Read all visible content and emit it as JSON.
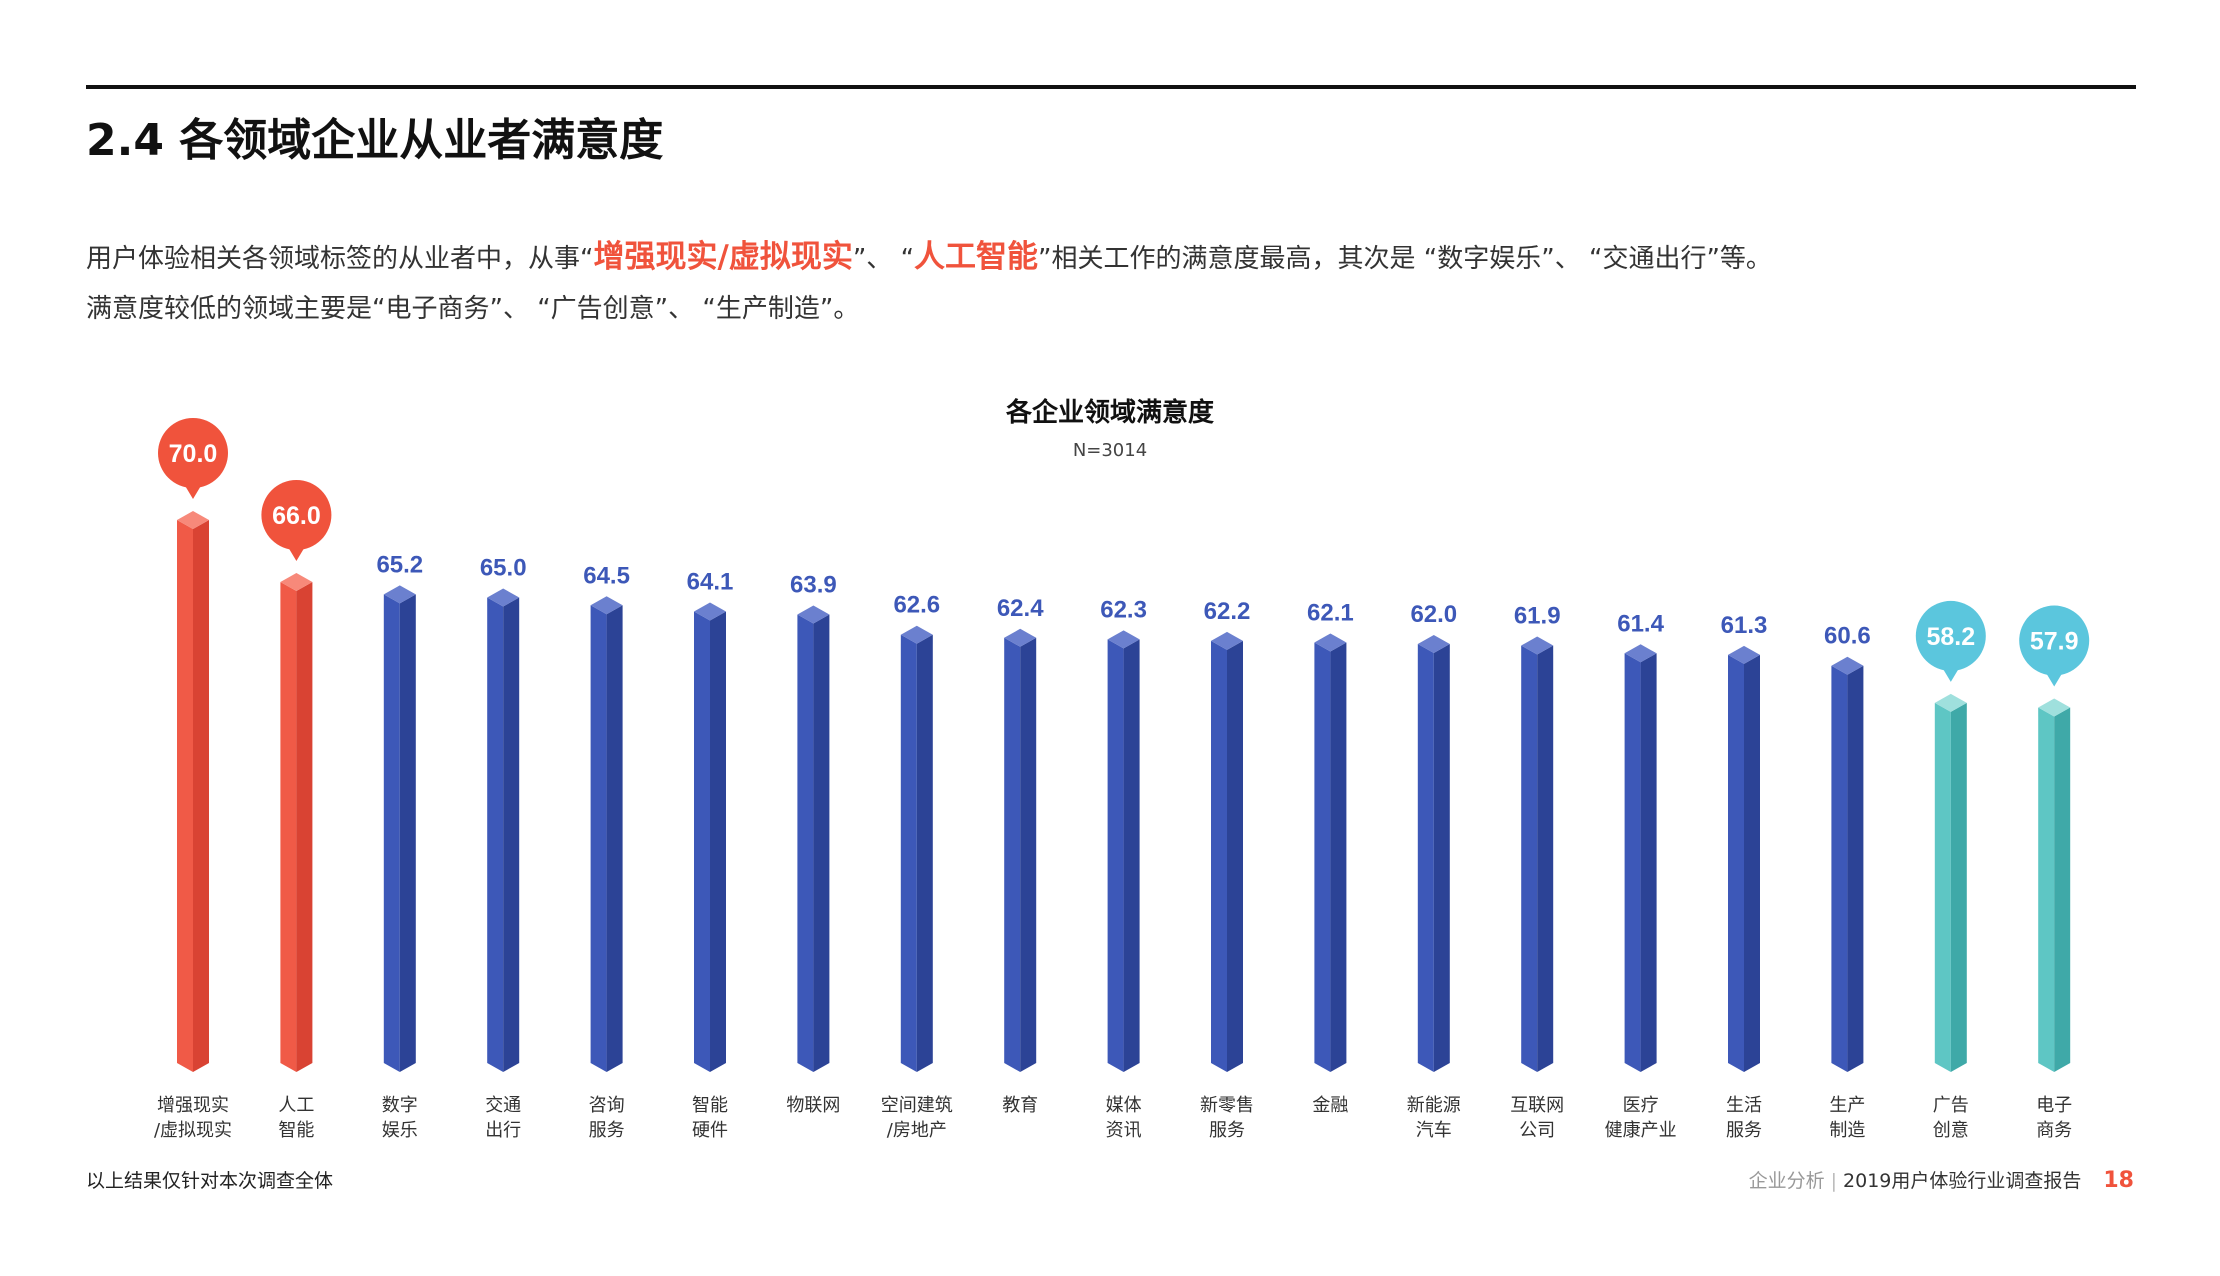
{
  "header": {
    "title": "2.4 各领域企业从业者满意度"
  },
  "summary": {
    "line1_a": "用户体验相关各领域标签的从业者中，从事",
    "q1_open": "“",
    "hl1": "增强现实/虚拟现实",
    "q1_close": "”、 “",
    "hl2": "人工智能",
    "line1_b": "”相关工作的满意度最高，其次是 “数字娱乐”、 “交通出行”等。",
    "line2": "满意度较低的领域主要是“电子商务”、 “广告创意”、 “生产制造”。"
  },
  "chart_data": {
    "type": "bar",
    "title": "各企业领域满意度",
    "subtitle": "N=3014",
    "categories": [
      [
        "增强现实",
        "/虚拟现实"
      ],
      [
        "人工",
        "智能"
      ],
      [
        "数字",
        "娱乐"
      ],
      [
        "交通",
        "出行"
      ],
      [
        "咨询",
        "服务"
      ],
      [
        "智能",
        "硬件"
      ],
      [
        "物联网"
      ],
      [
        "空间建筑",
        "/房地产"
      ],
      [
        "教育"
      ],
      [
        "媒体",
        "资讯"
      ],
      [
        "新零售",
        "服务"
      ],
      [
        "金融"
      ],
      [
        "新能源",
        "汽车"
      ],
      [
        "互联网",
        "公司"
      ],
      [
        "医疗",
        "健康产业"
      ],
      [
        "生活",
        "服务"
      ],
      [
        "生产",
        "制造"
      ],
      [
        "广告",
        "创意"
      ],
      [
        "电子",
        "商务"
      ]
    ],
    "values": [
      70.0,
      66.0,
      65.2,
      65.0,
      64.5,
      64.1,
      63.9,
      62.6,
      62.4,
      62.3,
      62.2,
      62.1,
      62.0,
      61.9,
      61.4,
      61.3,
      60.6,
      58.2,
      57.9
    ],
    "value_labels": [
      "70.0",
      "66.0",
      "65.2",
      "65.0",
      "64.5",
      "64.1",
      "63.9",
      "62.6",
      "62.4",
      "62.3",
      "62.2",
      "62.1",
      "62.0",
      "61.9",
      "61.4",
      "61.3",
      "60.6",
      "58.2",
      "57.9"
    ],
    "groups": [
      "high",
      "high",
      "mid",
      "mid",
      "mid",
      "mid",
      "mid",
      "mid",
      "mid",
      "mid",
      "mid",
      "mid",
      "mid",
      "mid",
      "mid",
      "mid",
      "mid",
      "low",
      "low"
    ],
    "colors": {
      "high": {
        "front": "#f05a47",
        "side": "#d94333",
        "top": "#f7897a",
        "label": "#f0533c"
      },
      "mid": {
        "front": "#3d58b8",
        "side": "#2c4396",
        "top": "#6b80cf",
        "label": "#3d58b8"
      },
      "low": {
        "front": "#5ec6c4",
        "side": "#3fa9a8",
        "top": "#9fe0dd",
        "label": "#5bc6dd"
      }
    },
    "ylim": [
      0,
      70
    ],
    "grid": false,
    "legend": "none"
  },
  "footer": {
    "note": "以上结果仅针对本次调查全体",
    "section": "企业分析",
    "separator": "|",
    "report": "2019用户体验行业调查报告",
    "page": "18"
  }
}
